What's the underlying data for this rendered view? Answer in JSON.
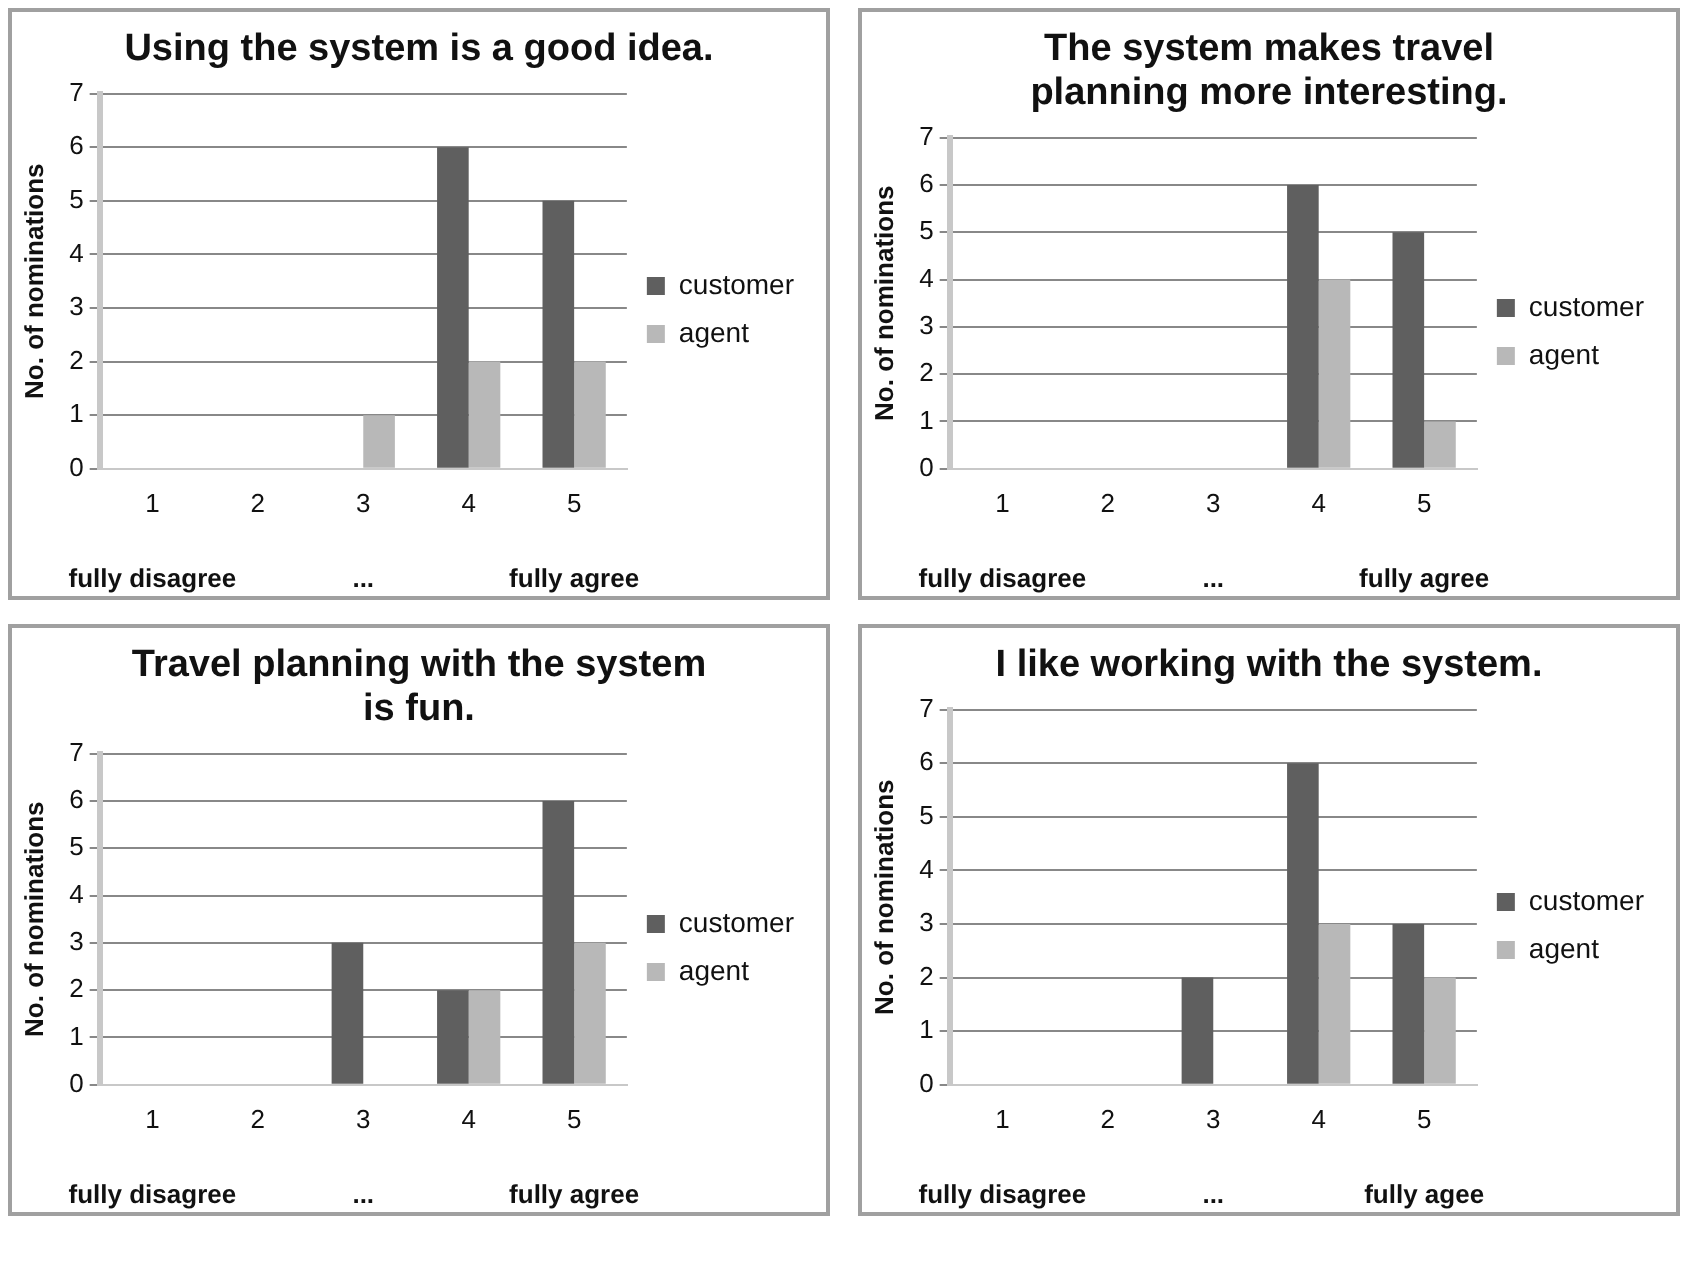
{
  "chart_data": [
    {
      "type": "bar",
      "title": "Using the system is a good idea.",
      "ylabel": "No. of nominations",
      "categories": [
        "1",
        "2",
        "3",
        "4",
        "5"
      ],
      "series": [
        {
          "name": "customer",
          "color": "#5f5f5f",
          "values": [
            0,
            0,
            0,
            6,
            5
          ]
        },
        {
          "name": "agent",
          "color": "#b8b8b8",
          "values": [
            0,
            0,
            1,
            2,
            2
          ]
        }
      ],
      "ylim": [
        0,
        7
      ],
      "yticks": [
        0,
        1,
        2,
        3,
        4,
        5,
        6,
        7
      ],
      "grid": "y",
      "legend": "right",
      "annotations": [
        "fully disagree",
        "...",
        "fully agree"
      ]
    },
    {
      "type": "bar",
      "title": "The system makes travel planning more interesting.",
      "ylabel": "No. of nominations",
      "categories": [
        "1",
        "2",
        "3",
        "4",
        "5"
      ],
      "series": [
        {
          "name": "customer",
          "color": "#5f5f5f",
          "values": [
            0,
            0,
            0,
            6,
            5
          ]
        },
        {
          "name": "agent",
          "color": "#b8b8b8",
          "values": [
            0,
            0,
            0,
            4,
            1
          ]
        }
      ],
      "ylim": [
        0,
        7
      ],
      "yticks": [
        0,
        1,
        2,
        3,
        4,
        5,
        6,
        7
      ],
      "grid": "y",
      "legend": "right",
      "annotations": [
        "fully disagree",
        "...",
        "fully agree"
      ]
    },
    {
      "type": "bar",
      "title": "Travel planning with the system is fun.",
      "ylabel": "No. of nominations",
      "categories": [
        "1",
        "2",
        "3",
        "4",
        "5"
      ],
      "series": [
        {
          "name": "customer",
          "color": "#5f5f5f",
          "values": [
            0,
            0,
            3,
            2,
            6
          ]
        },
        {
          "name": "agent",
          "color": "#b8b8b8",
          "values": [
            0,
            0,
            0,
            2,
            3
          ]
        }
      ],
      "ylim": [
        0,
        7
      ],
      "yticks": [
        0,
        1,
        2,
        3,
        4,
        5,
        6,
        7
      ],
      "grid": "y",
      "legend": "right",
      "annotations": [
        "fully disagree",
        "...",
        "fully agree"
      ]
    },
    {
      "type": "bar",
      "title": "I like working with the system.",
      "ylabel": "No. of nominations",
      "categories": [
        "1",
        "2",
        "3",
        "4",
        "5"
      ],
      "series": [
        {
          "name": "customer",
          "color": "#5f5f5f",
          "values": [
            0,
            0,
            2,
            6,
            3
          ]
        },
        {
          "name": "agent",
          "color": "#b8b8b8",
          "values": [
            0,
            0,
            0,
            3,
            2
          ]
        }
      ],
      "ylim": [
        0,
        7
      ],
      "yticks": [
        0,
        1,
        2,
        3,
        4,
        5,
        6,
        7
      ],
      "grid": "y",
      "legend": "right",
      "annotations": [
        "fully disagree",
        "...",
        "fully agee"
      ]
    }
  ]
}
